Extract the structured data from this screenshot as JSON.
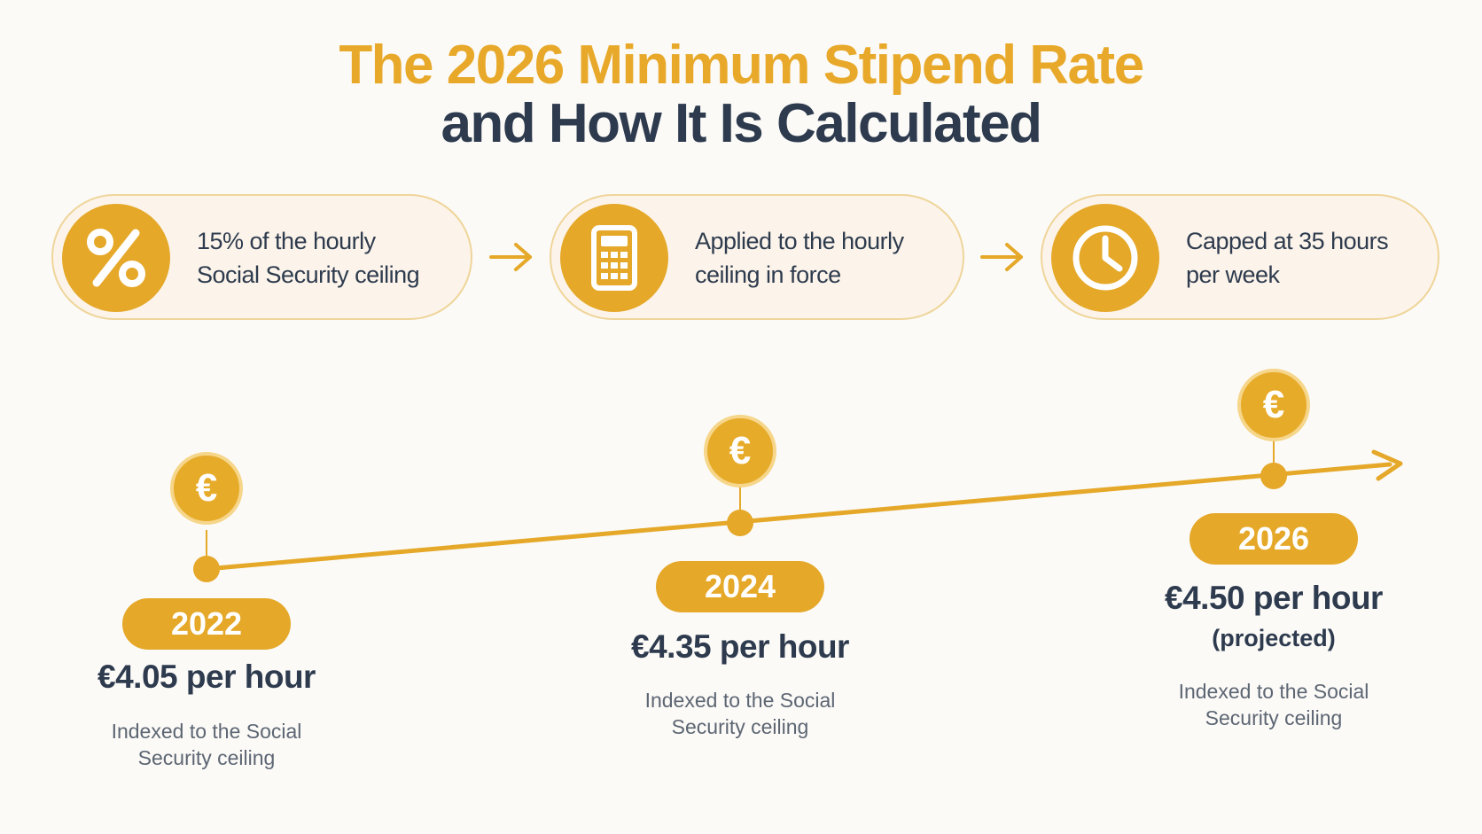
{
  "title": {
    "line1": "The 2026 Minimum Stipend Rate",
    "line2": "and How It Is Calculated"
  },
  "steps": [
    {
      "icon": "percent-icon",
      "line1": "15% of the hourly",
      "line2": "Social Security ceiling"
    },
    {
      "icon": "calculator-icon",
      "line1": "Applied to the hourly",
      "line2": "ceiling in force"
    },
    {
      "icon": "clock-icon",
      "line1": "Capped at 35 hours",
      "line2": "per week"
    }
  ],
  "timeline": [
    {
      "year": "2022",
      "rate": "€4.05 per hour",
      "note_line1": "Indexed to the Social",
      "note_line2": "Security ceiling",
      "value": 4.05
    },
    {
      "year": "2024",
      "rate": "€4.35 per hour",
      "note_line1": "Indexed to the Social",
      "note_line2": "Security ceiling",
      "value": 4.35
    },
    {
      "year": "2026",
      "rate": "€4.50 per hour",
      "projected": "(projected)",
      "note_line1": "Indexed to the Social",
      "note_line2": "Security ceiling",
      "value": 4.5
    }
  ],
  "coin_symbol": "€",
  "colors": {
    "accent": "#e5a829",
    "dark": "#2e3b4e",
    "muted": "#5d6673",
    "step_bg": "#fcf4ea"
  }
}
